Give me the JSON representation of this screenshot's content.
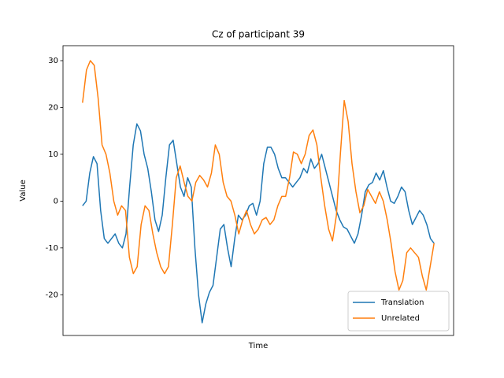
{
  "chart_data": {
    "type": "line",
    "title": "Cz of participant 39",
    "x_label": "Time",
    "y_label": "Value",
    "ylim": [
      -28.7,
      33.2
    ],
    "yticks": [
      -20,
      -10,
      0,
      10,
      20,
      30
    ],
    "grid": false,
    "legend": "lower right",
    "series": [
      {
        "name": "Translation",
        "color": "#1f77b4",
        "values": [
          -1,
          0,
          6,
          9.5,
          8,
          -2,
          -8,
          -9,
          -8,
          -7,
          -9,
          -10,
          -7,
          3,
          12,
          16.5,
          15,
          10,
          7,
          2,
          -4,
          -6.5,
          -3,
          5,
          12,
          13,
          8,
          3,
          1,
          5,
          3,
          -10,
          -20,
          -26,
          -22,
          -19.5,
          -18,
          -12,
          -6,
          -5,
          -10,
          -14,
          -8,
          -3,
          -4,
          -3,
          -1,
          -0.5,
          -3,
          0,
          8,
          11.5,
          11.5,
          10,
          7,
          5,
          5,
          4,
          3,
          4,
          5,
          7,
          6,
          9,
          7,
          8,
          10,
          7,
          4,
          1,
          -2,
          -4,
          -5.5,
          -6,
          -7.5,
          -9,
          -7,
          -3,
          2,
          3.5,
          4,
          6,
          4.5,
          6.5,
          3,
          0,
          -0.5,
          1,
          3,
          2,
          -2,
          -5,
          -3.5,
          -2,
          -3,
          -5,
          -8,
          -9
        ]
      },
      {
        "name": "Unrelated",
        "color": "#ff7f0e",
        "values": [
          21,
          28,
          30,
          29,
          22,
          12,
          10,
          6,
          0,
          -3,
          -1,
          -2,
          -12,
          -15.5,
          -14,
          -5,
          -1,
          -2,
          -7,
          -11,
          -14,
          -15.5,
          -14,
          -5,
          5,
          7.5,
          4,
          1,
          0,
          4,
          5.5,
          4.5,
          3,
          6,
          12,
          10,
          4,
          1,
          0,
          -3,
          -7,
          -4,
          -2,
          -5,
          -7,
          -6,
          -4,
          -3.5,
          -5,
          -4,
          -1,
          1,
          1,
          5,
          10.5,
          10,
          8,
          10,
          14,
          15.2,
          12,
          5,
          -1,
          -6,
          -8.5,
          -3,
          10,
          21.5,
          17,
          8,
          2,
          -2.5,
          -1,
          2.5,
          1,
          -0.5,
          2,
          0,
          -4,
          -9,
          -15,
          -19,
          -17,
          -11,
          -10,
          -11,
          -12,
          -16,
          -19,
          -14,
          -9
        ]
      }
    ]
  }
}
